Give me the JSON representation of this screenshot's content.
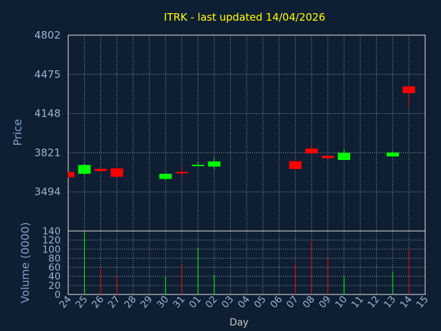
{
  "chart_data": {
    "type": "candlestick",
    "title": "ITRK - last updated 14/04/2026",
    "xlabel": "Day",
    "ylabel": "Price",
    "volume_label": "Volume (0000)",
    "price_ylim": [
      3167,
      4802
    ],
    "price_ticks": [
      "4802",
      "4475",
      "4148",
      "3821",
      "3494"
    ],
    "volume_ylim": [
      0,
      140
    ],
    "volume_ticks": [
      "140",
      "120",
      "100",
      "80",
      "60",
      "40",
      "20",
      "0"
    ],
    "categories": [
      "24",
      "25",
      "26",
      "27",
      "28",
      "29",
      "30",
      "31",
      "01",
      "02",
      "03",
      "04",
      "05",
      "06",
      "07",
      "08",
      "09",
      "10",
      "11",
      "12",
      "13",
      "14",
      "15"
    ],
    "grid": true,
    "colors": {
      "up": "#00ff00",
      "down": "#ff0000",
      "title": "#ffff00",
      "background": "#0f1f33"
    },
    "candles": [
      {
        "day": "24",
        "open": 3660,
        "high": 3660,
        "low": 3612,
        "close": 3615,
        "volume": 0
      },
      {
        "day": "25",
        "open": 3645,
        "high": 3725,
        "low": 3635,
        "close": 3718,
        "volume": 137
      },
      {
        "day": "26",
        "open": 3686,
        "high": 3686,
        "low": 3662,
        "close": 3668,
        "volume": 57
      },
      {
        "day": "27",
        "open": 3690,
        "high": 3700,
        "low": 3614,
        "close": 3620,
        "volume": 38
      },
      {
        "day": "30",
        "open": 3602,
        "high": 3650,
        "low": 3590,
        "close": 3645,
        "volume": 40
      },
      {
        "day": "31",
        "open": 3660,
        "high": 3702,
        "low": 3618,
        "close": 3658,
        "volume": 65
      },
      {
        "day": "01",
        "open": 3715,
        "high": 3745,
        "low": 3705,
        "close": 3720,
        "volume": 102
      },
      {
        "day": "02",
        "open": 3705,
        "high": 3775,
        "low": 3685,
        "close": 3748,
        "volume": 43
      },
      {
        "day": "07",
        "open": 3750,
        "high": 3750,
        "low": 3685,
        "close": 3685,
        "volume": 68
      },
      {
        "day": "08",
        "open": 3855,
        "high": 3885,
        "low": 3815,
        "close": 3815,
        "volume": 118
      },
      {
        "day": "09",
        "open": 3795,
        "high": 3795,
        "low": 3770,
        "close": 3775,
        "volume": 80
      },
      {
        "day": "10",
        "open": 3760,
        "high": 3850,
        "low": 3760,
        "close": 3820,
        "volume": 40
      },
      {
        "day": "13",
        "open": 3790,
        "high": 3828,
        "low": 3790,
        "close": 3822,
        "volume": 50
      },
      {
        "day": "14",
        "open": 4375,
        "high": 4375,
        "low": 4200,
        "close": 4318,
        "volume": 100
      }
    ]
  }
}
